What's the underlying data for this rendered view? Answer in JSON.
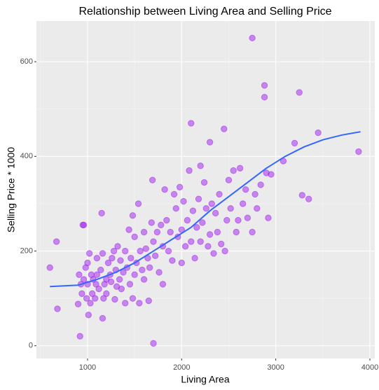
{
  "chart_data": {
    "type": "scatter",
    "title": "Relationship between Living Area and Selling Price",
    "x_label": "Living Area",
    "y_label": "Selling Price * 1000",
    "xlim": [
      457,
      4052
    ],
    "ylim": [
      -27,
      686
    ],
    "xticks": [
      1000,
      2000,
      3000,
      4000
    ],
    "yticks": [
      0,
      200,
      400,
      600
    ],
    "grid": true,
    "color": "#a020f0",
    "x": [
      600,
      670,
      680,
      900,
      910,
      920,
      930,
      940,
      950,
      960,
      960,
      980,
      990,
      1000,
      1000,
      1010,
      1020,
      1030,
      1040,
      1050,
      1060,
      1080,
      1090,
      1100,
      1100,
      1120,
      1140,
      1150,
      1160,
      1160,
      1170,
      1180,
      1200,
      1200,
      1220,
      1240,
      1250,
      1260,
      1280,
      1290,
      1300,
      1310,
      1320,
      1340,
      1350,
      1360,
      1380,
      1400,
      1400,
      1420,
      1440,
      1450,
      1460,
      1480,
      1480,
      1500,
      1500,
      1520,
      1540,
      1550,
      1560,
      1580,
      1600,
      1600,
      1620,
      1640,
      1650,
      1660,
      1680,
      1690,
      1700,
      1700,
      1720,
      1740,
      1760,
      1780,
      1800,
      1800,
      1820,
      1840,
      1860,
      1880,
      1900,
      1920,
      1940,
      1960,
      1980,
      2000,
      2000,
      2020,
      2040,
      2060,
      2080,
      2100,
      2100,
      2120,
      2140,
      2160,
      2180,
      2200,
      2200,
      2220,
      2240,
      2260,
      2280,
      2300,
      2300,
      2320,
      2340,
      2360,
      2380,
      2400,
      2420,
      2450,
      2460,
      2480,
      2500,
      2520,
      2550,
      2580,
      2600,
      2620,
      2650,
      2680,
      2700,
      2750,
      2750,
      2780,
      2800,
      2840,
      2880,
      2880,
      2900,
      2920,
      2950,
      3080,
      3200,
      3250,
      3280,
      3350,
      3450,
      3880
    ],
    "y": [
      165,
      220,
      78,
      88,
      150,
      20,
      130,
      110,
      255,
      255,
      140,
      165,
      100,
      175,
      130,
      65,
      195,
      90,
      150,
      110,
      140,
      100,
      130,
      185,
      150,
      120,
      160,
      280,
      58,
      195,
      100,
      130,
      140,
      110,
      175,
      150,
      135,
      185,
      200,
      98,
      160,
      125,
      210,
      140,
      180,
      120,
      155,
      200,
      90,
      165,
      245,
      130,
      185,
      275,
      100,
      150,
      230,
      175,
      300,
      90,
      200,
      160,
      240,
      140,
      205,
      185,
      95,
      165,
      260,
      350,
      5,
      220,
      190,
      240,
      155,
      255,
      210,
      130,
      330,
      265,
      200,
      240,
      180,
      320,
      290,
      230,
      335,
      245,
      175,
      305,
      210,
      265,
      370,
      470,
      220,
      285,
      185,
      250,
      310,
      380,
      220,
      260,
      345,
      290,
      210,
      430,
      235,
      300,
      195,
      280,
      240,
      320,
      215,
      458,
      200,
      265,
      350,
      290,
      370,
      240,
      265,
      375,
      300,
      330,
      270,
      650,
      240,
      320,
      290,
      340,
      550,
      525,
      365,
      270,
      362,
      390,
      428,
      535,
      318,
      310,
      450,
      410
    ],
    "trend": {
      "color": "#3366ff",
      "x": [
        600,
        900,
        1100,
        1300,
        1500,
        1700,
        1900,
        2100,
        2300,
        2500,
        2700,
        2900,
        3100,
        3300,
        3500,
        3700,
        3900
      ],
      "y": [
        125,
        128,
        140,
        155,
        175,
        200,
        225,
        250,
        285,
        315,
        345,
        375,
        400,
        420,
        435,
        445,
        452
      ]
    }
  }
}
